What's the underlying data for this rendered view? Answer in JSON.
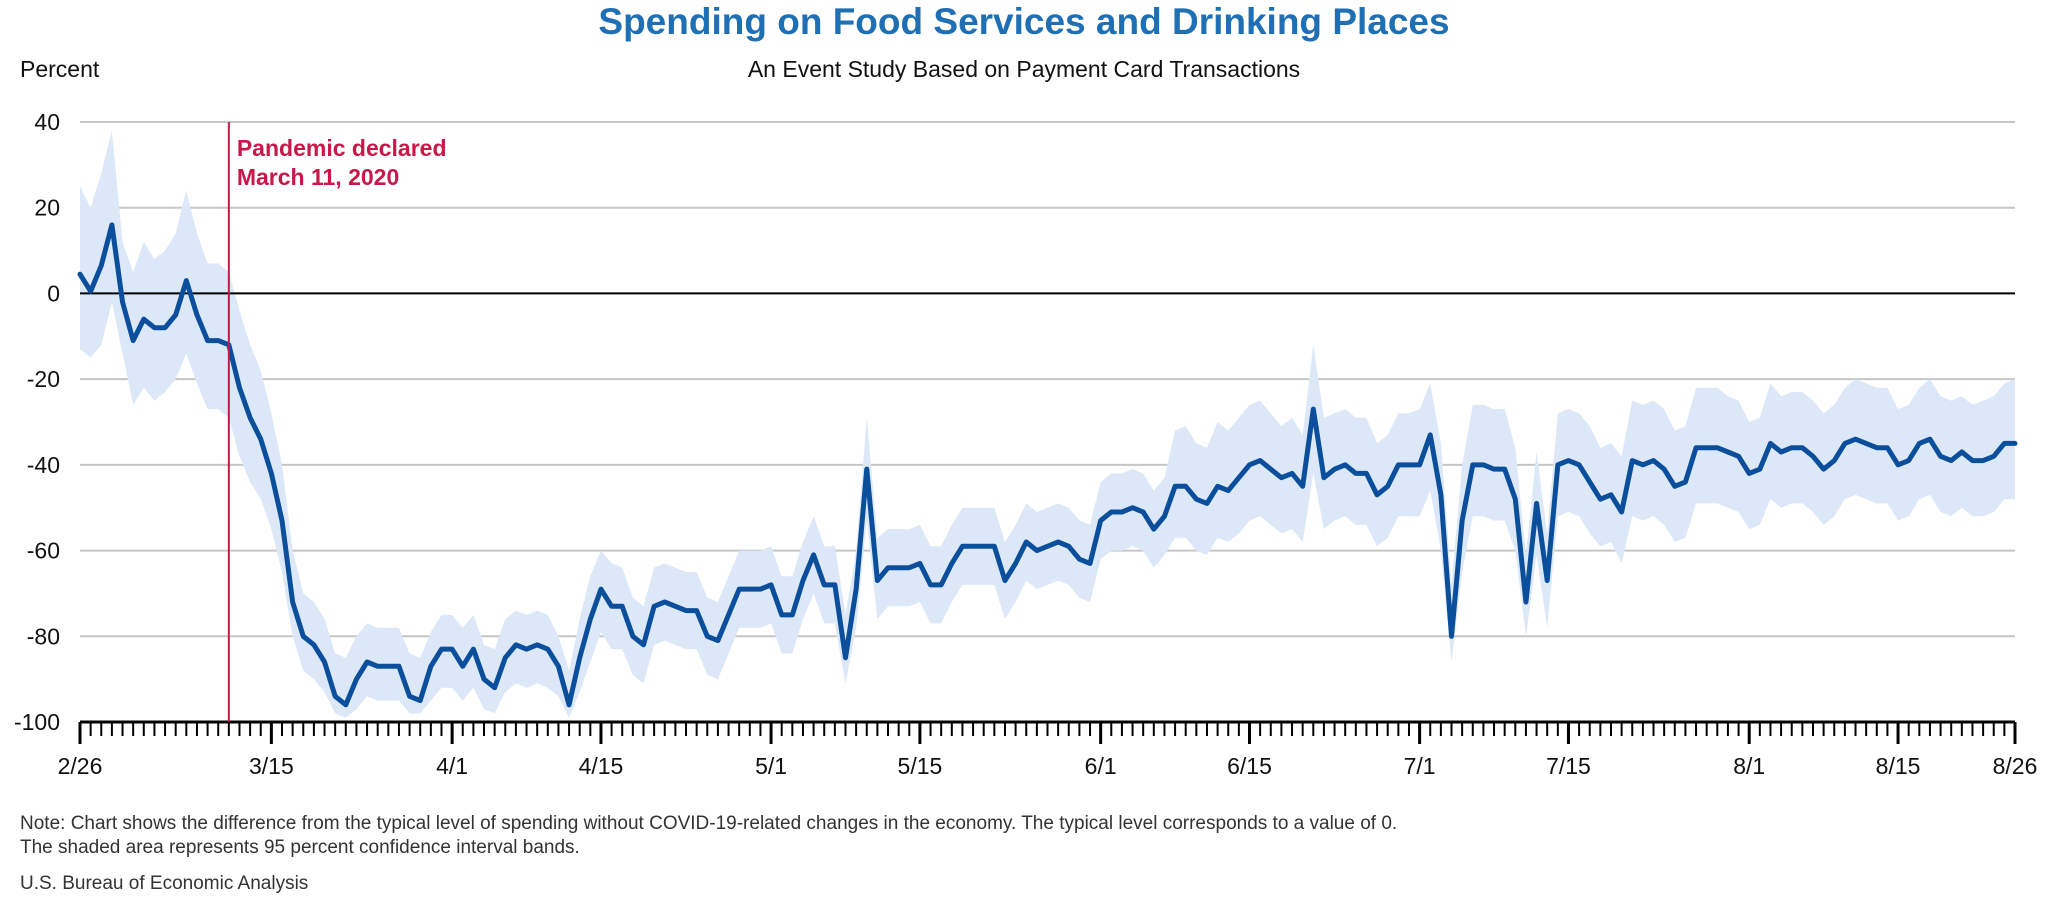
{
  "chart_data": {
    "type": "line",
    "title": "Spending on Food Services and Drinking Places",
    "subtitle": "An Event Study Based on Payment Card Transactions",
    "ylabel": "Percent",
    "xlabel": "",
    "ylim": [
      -100,
      40
    ],
    "yticks": [
      40,
      20,
      0,
      -20,
      -40,
      -60,
      -80,
      -100
    ],
    "grid": true,
    "x_start": "2/26",
    "x_end": "8/26",
    "xtick_labels": [
      {
        "label": "2/26",
        "day": 0
      },
      {
        "label": "3/15",
        "day": 18
      },
      {
        "label": "4/1",
        "day": 35
      },
      {
        "label": "4/15",
        "day": 49
      },
      {
        "label": "5/1",
        "day": 65
      },
      {
        "label": "5/15",
        "day": 79
      },
      {
        "label": "6/1",
        "day": 96
      },
      {
        "label": "6/15",
        "day": 110
      },
      {
        "label": "7/1",
        "day": 126
      },
      {
        "label": "7/15",
        "day": 140
      },
      {
        "label": "8/1",
        "day": 157
      },
      {
        "label": "8/15",
        "day": 171
      },
      {
        "label": "8/26",
        "day": 182
      }
    ],
    "annotation": {
      "line1": "Pandemic declared",
      "line2": "March 11, 2020",
      "day": 14
    },
    "series": [
      {
        "values": [
          4.5,
          0.5,
          6.5,
          16,
          -2,
          -11,
          -6,
          -8,
          -8,
          -5,
          3,
          -5,
          -11,
          -11,
          -12,
          -22,
          -29,
          -34,
          -42,
          -53,
          -72,
          -80,
          -82,
          -86,
          -94,
          -96,
          -90,
          -86,
          -87,
          -87,
          -87,
          -94,
          -95,
          -87,
          -83,
          -83,
          -87,
          -83,
          -90,
          -92,
          -85,
          -82,
          -83,
          -82,
          -83,
          -87,
          -96,
          -85,
          -76,
          -69,
          -73,
          -73,
          -80,
          -82,
          -73,
          -72,
          -73,
          -74,
          -74,
          -80,
          -81,
          -75,
          -69,
          -69,
          -69,
          -68,
          -75,
          -75,
          -67,
          -61,
          -68,
          -68,
          -85,
          -69,
          -41,
          -67,
          -64,
          -64,
          -64,
          -63,
          -68,
          -68,
          -63,
          -59,
          -59,
          -59,
          -59,
          -67,
          -63,
          -58,
          -60,
          -59,
          -58,
          -59,
          -62,
          -63,
          -53,
          -51,
          -51,
          -50,
          -51,
          -55,
          -52,
          -45,
          -45,
          -48,
          -49,
          -45,
          -46,
          -43,
          -40,
          -39,
          -41,
          -43,
          -42,
          -45,
          -27,
          -43,
          -41,
          -40,
          -42,
          -42,
          -47,
          -45,
          -40,
          -40,
          -40,
          -33,
          -47,
          -80,
          -53,
          -40,
          -40,
          -41,
          -41,
          -48,
          -72,
          -49,
          -67,
          -40,
          -39,
          -40,
          -44,
          -48,
          -47,
          -51,
          -39,
          -40,
          -39,
          -41,
          -45,
          -44,
          -36,
          -36,
          -36,
          -37,
          -38,
          -42,
          -41,
          -35,
          -37,
          -36,
          -36,
          -38,
          -41,
          -39,
          -35,
          -34,
          -35,
          -36,
          -36,
          -40,
          -39,
          -35,
          -34,
          -38,
          -39,
          -37,
          -39,
          -39,
          -38,
          -35,
          -35
        ],
        "ci_upper": [
          25,
          20,
          28,
          38,
          12,
          5,
          12,
          8,
          10,
          14,
          24,
          14,
          7,
          7,
          5,
          -4,
          -12,
          -18,
          -28,
          -40,
          -60,
          -70,
          -72,
          -76,
          -84,
          -85,
          -80,
          -77,
          -78,
          -78,
          -78,
          -84,
          -85,
          -79,
          -75,
          -75,
          -78,
          -75,
          -82,
          -83,
          -76,
          -74,
          -75,
          -74,
          -75,
          -80,
          -88,
          -76,
          -66,
          -60,
          -63,
          -64,
          -71,
          -73,
          -64,
          -63,
          -64,
          -65,
          -65,
          -71,
          -72,
          -66,
          -60,
          -60,
          -60,
          -59,
          -66,
          -66,
          -58,
          -52,
          -59,
          -59,
          -75,
          -60,
          -29,
          -57,
          -55,
          -55,
          -55,
          -54,
          -59,
          -59,
          -54,
          -50,
          -50,
          -50,
          -50,
          -58,
          -54,
          -49,
          -51,
          -50,
          -49,
          -50,
          -53,
          -54,
          -44,
          -42,
          -42,
          -41,
          -42,
          -46,
          -43,
          -32,
          -31,
          -35,
          -36,
          -30,
          -32,
          -29,
          -26,
          -25,
          -28,
          -31,
          -29,
          -33,
          -12,
          -29,
          -28,
          -27,
          -29,
          -29,
          -35,
          -33,
          -28,
          -28,
          -27,
          -21,
          -35,
          -68,
          -40,
          -26,
          -26,
          -27,
          -27,
          -36,
          -61,
          -37,
          -56,
          -28,
          -27,
          -28,
          -31,
          -36,
          -35,
          -38,
          -25,
          -26,
          -25,
          -27,
          -32,
          -31,
          -22,
          -22,
          -22,
          -24,
          -25,
          -30,
          -29,
          -21,
          -24,
          -23,
          -23,
          -25,
          -28,
          -26,
          -22,
          -20,
          -21,
          -22,
          -22,
          -27,
          -26,
          -22,
          -20,
          -24,
          -25,
          -24,
          -26,
          -25,
          -24,
          -21,
          -20
        ],
        "ci_lower": [
          -13,
          -15,
          -12,
          -2,
          -14,
          -26,
          -22,
          -25,
          -23,
          -20,
          -14,
          -21,
          -27,
          -27,
          -29,
          -38,
          -44,
          -48,
          -55,
          -65,
          -80,
          -88,
          -90,
          -93,
          -98,
          -99,
          -97,
          -94,
          -95,
          -95,
          -95,
          -98,
          -98,
          -95,
          -92,
          -92,
          -95,
          -92,
          -97,
          -98,
          -93,
          -91,
          -92,
          -91,
          -92,
          -94,
          -99,
          -93,
          -86,
          -79,
          -83,
          -83,
          -89,
          -91,
          -82,
          -81,
          -82,
          -83,
          -83,
          -89,
          -90,
          -84,
          -78,
          -78,
          -78,
          -77,
          -84,
          -84,
          -76,
          -70,
          -77,
          -77,
          -91,
          -78,
          -53,
          -76,
          -73,
          -73,
          -73,
          -72,
          -77,
          -77,
          -72,
          -68,
          -68,
          -68,
          -68,
          -76,
          -72,
          -67,
          -69,
          -68,
          -67,
          -68,
          -71,
          -72,
          -62,
          -60,
          -60,
          -59,
          -60,
          -64,
          -61,
          -57,
          -57,
          -60,
          -61,
          -57,
          -58,
          -56,
          -53,
          -52,
          -54,
          -56,
          -55,
          -58,
          -42,
          -55,
          -53,
          -52,
          -54,
          -54,
          -59,
          -57,
          -52,
          -52,
          -52,
          -46,
          -60,
          -86,
          -65,
          -52,
          -52,
          -53,
          -53,
          -60,
          -80,
          -61,
          -78,
          -52,
          -51,
          -52,
          -56,
          -59,
          -58,
          -63,
          -52,
          -53,
          -52,
          -54,
          -58,
          -57,
          -49,
          -49,
          -49,
          -50,
          -51,
          -55,
          -54,
          -48,
          -50,
          -49,
          -49,
          -51,
          -54,
          -52,
          -48,
          -47,
          -48,
          -49,
          -49,
          -53,
          -52,
          -48,
          -47,
          -51,
          -52,
          -50,
          -52,
          -52,
          -51,
          -48,
          -48
        ]
      }
    ],
    "colors": {
      "line": "#0b4f9c",
      "band": "#dce8f8",
      "annotation": "#c8184a",
      "grid": "#c6c6c6",
      "zero_line": "#000000",
      "title": "#1f6fb5"
    }
  },
  "notes": {
    "line1": "Note: Chart shows the difference from the typical level of spending without COVID-19-related changes in the economy. The typical level corresponds to a value of 0.",
    "line2": "The shaded area represents 95 percent confidence interval bands.",
    "source": "U.S. Bureau of Economic Analysis"
  }
}
